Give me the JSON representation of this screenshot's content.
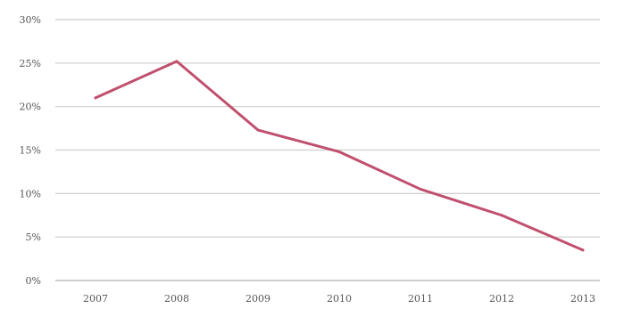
{
  "chart_data": {
    "type": "line",
    "title": "",
    "xlabel": "",
    "ylabel": "",
    "categories": [
      "2007",
      "2008",
      "2009",
      "2010",
      "2011",
      "2012",
      "2013"
    ],
    "series": [
      {
        "values": [
          21,
          25.2,
          17.3,
          14.8,
          10.5,
          7.5,
          3.5
        ]
      }
    ],
    "ylim": [
      0,
      30
    ],
    "yticks": [
      0,
      5,
      10,
      15,
      20,
      25,
      30
    ],
    "ytick_labels": [
      "0%",
      "5%",
      "10%",
      "15%",
      "20%",
      "25%",
      "30%"
    ],
    "grid": true,
    "legend": "none",
    "colors": {
      "series": "#c0506e",
      "grid": "#d4d4d4"
    }
  }
}
